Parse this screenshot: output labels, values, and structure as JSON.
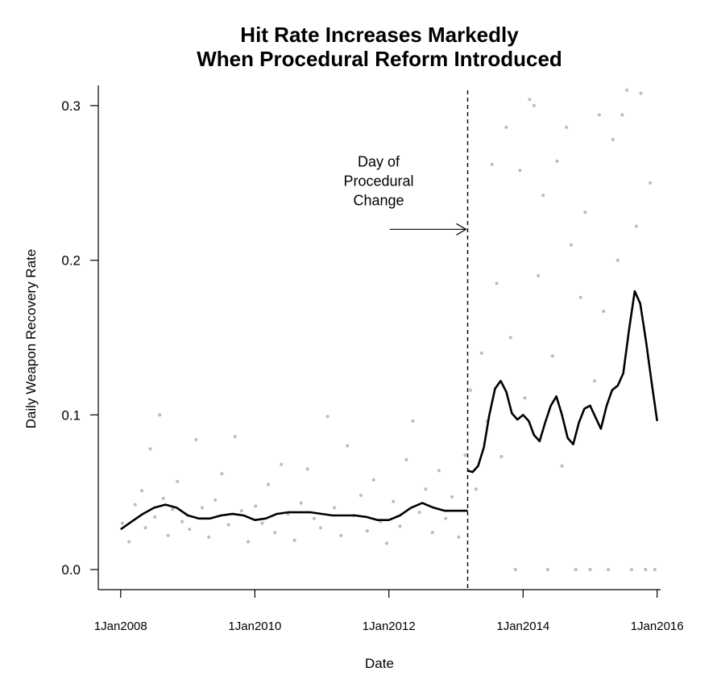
{
  "chart_data": {
    "type": "scatter",
    "title_line1": "Hit Rate Increases Markedly",
    "title_line2": "When Procedural Reform Introduced",
    "xlabel": "Date",
    "ylabel": "Daily Weapon Recovery Rate",
    "xlim": [
      "2007-09-01",
      "2016-01-20"
    ],
    "ylim": [
      -0.013,
      0.313
    ],
    "grid": false,
    "x_ticks": [
      {
        "date": "2008-01-01",
        "label": "1Jan2008"
      },
      {
        "date": "2010-01-01",
        "label": "1Jan2010"
      },
      {
        "date": "2012-01-01",
        "label": "1Jan2012"
      },
      {
        "date": "2014-01-01",
        "label": "1Jan2014"
      },
      {
        "date": "2016-01-01",
        "label": "1Jan2016"
      }
    ],
    "y_ticks": [
      {
        "value": 0.0,
        "label": "0.0"
      },
      {
        "value": 0.1,
        "label": "0.1"
      },
      {
        "value": 0.2,
        "label": "0.2"
      },
      {
        "value": 0.3,
        "label": "0.3"
      }
    ],
    "procedural_change_date": "2013-03-05",
    "annotation": {
      "lines": [
        "Day of",
        "Procedural",
        "Change"
      ],
      "arrow_from_date": "2012-01-05",
      "arrow_y": 0.22
    },
    "smooth_before": [
      [
        "2008-01-01",
        0.026
      ],
      [
        "2008-03-01",
        0.031
      ],
      [
        "2008-05-01",
        0.036
      ],
      [
        "2008-07-01",
        0.04
      ],
      [
        "2008-09-01",
        0.042
      ],
      [
        "2008-11-01",
        0.04
      ],
      [
        "2009-01-01",
        0.035
      ],
      [
        "2009-03-01",
        0.033
      ],
      [
        "2009-05-01",
        0.033
      ],
      [
        "2009-07-01",
        0.035
      ],
      [
        "2009-09-01",
        0.036
      ],
      [
        "2009-11-01",
        0.035
      ],
      [
        "2010-01-01",
        0.032
      ],
      [
        "2010-03-01",
        0.033
      ],
      [
        "2010-05-01",
        0.036
      ],
      [
        "2010-07-01",
        0.037
      ],
      [
        "2010-09-01",
        0.037
      ],
      [
        "2010-11-01",
        0.037
      ],
      [
        "2011-01-01",
        0.036
      ],
      [
        "2011-03-01",
        0.035
      ],
      [
        "2011-05-01",
        0.035
      ],
      [
        "2011-07-01",
        0.035
      ],
      [
        "2011-09-01",
        0.034
      ],
      [
        "2011-11-01",
        0.032
      ],
      [
        "2012-01-01",
        0.032
      ],
      [
        "2012-03-01",
        0.035
      ],
      [
        "2012-05-01",
        0.04
      ],
      [
        "2012-07-01",
        0.043
      ],
      [
        "2012-09-01",
        0.04
      ],
      [
        "2012-11-01",
        0.038
      ],
      [
        "2013-01-01",
        0.038
      ],
      [
        "2013-03-05",
        0.038
      ]
    ],
    "smooth_after": [
      [
        "2013-03-05",
        0.064
      ],
      [
        "2013-04-01",
        0.063
      ],
      [
        "2013-05-01",
        0.067
      ],
      [
        "2013-06-01",
        0.079
      ],
      [
        "2013-07-01",
        0.1
      ],
      [
        "2013-08-01",
        0.117
      ],
      [
        "2013-09-01",
        0.122
      ],
      [
        "2013-10-01",
        0.115
      ],
      [
        "2013-11-01",
        0.101
      ],
      [
        "2013-12-01",
        0.097
      ],
      [
        "2014-01-01",
        0.1
      ],
      [
        "2014-02-01",
        0.096
      ],
      [
        "2014-03-01",
        0.087
      ],
      [
        "2014-04-01",
        0.083
      ],
      [
        "2014-05-01",
        0.095
      ],
      [
        "2014-06-01",
        0.106
      ],
      [
        "2014-07-01",
        0.112
      ],
      [
        "2014-08-01",
        0.1
      ],
      [
        "2014-09-01",
        0.085
      ],
      [
        "2014-10-01",
        0.081
      ],
      [
        "2014-11-01",
        0.095
      ],
      [
        "2014-12-01",
        0.104
      ],
      [
        "2015-01-01",
        0.106
      ],
      [
        "2015-02-01",
        0.098
      ],
      [
        "2015-03-01",
        0.091
      ],
      [
        "2015-04-01",
        0.106
      ],
      [
        "2015-05-01",
        0.116
      ],
      [
        "2015-06-01",
        0.119
      ],
      [
        "2015-07-01",
        0.127
      ],
      [
        "2015-08-01",
        0.155
      ],
      [
        "2015-09-01",
        0.18
      ],
      [
        "2015-10-01",
        0.172
      ],
      [
        "2015-11-01",
        0.148
      ],
      [
        "2015-12-01",
        0.122
      ],
      [
        "2016-01-01",
        0.096
      ]
    ],
    "scatter_before": [
      [
        "2008-01-10",
        0.03
      ],
      [
        "2008-02-15",
        0.018
      ],
      [
        "2008-03-20",
        0.042
      ],
      [
        "2008-04-25",
        0.051
      ],
      [
        "2008-05-15",
        0.027
      ],
      [
        "2008-06-10",
        0.078
      ],
      [
        "2008-07-05",
        0.034
      ],
      [
        "2008-08-01",
        0.1
      ],
      [
        "2008-08-20",
        0.046
      ],
      [
        "2008-09-15",
        0.022
      ],
      [
        "2008-10-10",
        0.039
      ],
      [
        "2008-11-05",
        0.057
      ],
      [
        "2008-12-01",
        0.031
      ],
      [
        "2009-01-10",
        0.026
      ],
      [
        "2009-02-15",
        0.084
      ],
      [
        "2009-03-20",
        0.04
      ],
      [
        "2009-04-25",
        0.021
      ],
      [
        "2009-05-30",
        0.045
      ],
      [
        "2009-07-05",
        0.062
      ],
      [
        "2009-08-10",
        0.029
      ],
      [
        "2009-09-15",
        0.086
      ],
      [
        "2009-10-20",
        0.038
      ],
      [
        "2009-11-25",
        0.018
      ],
      [
        "2010-01-05",
        0.041
      ],
      [
        "2010-02-10",
        0.03
      ],
      [
        "2010-03-15",
        0.055
      ],
      [
        "2010-04-20",
        0.024
      ],
      [
        "2010-05-25",
        0.068
      ],
      [
        "2010-06-30",
        0.036
      ],
      [
        "2010-08-05",
        0.019
      ],
      [
        "2010-09-10",
        0.043
      ],
      [
        "2010-10-15",
        0.065
      ],
      [
        "2010-11-20",
        0.033
      ],
      [
        "2010-12-25",
        0.027
      ],
      [
        "2011-02-01",
        0.099
      ],
      [
        "2011-03-10",
        0.04
      ],
      [
        "2011-04-15",
        0.022
      ],
      [
        "2011-05-20",
        0.08
      ],
      [
        "2011-06-25",
        0.035
      ],
      [
        "2011-08-01",
        0.048
      ],
      [
        "2011-09-05",
        0.025
      ],
      [
        "2011-10-10",
        0.058
      ],
      [
        "2011-11-15",
        0.031
      ],
      [
        "2011-12-20",
        0.017
      ],
      [
        "2012-01-25",
        0.044
      ],
      [
        "2012-03-01",
        0.028
      ],
      [
        "2012-04-05",
        0.071
      ],
      [
        "2012-05-10",
        0.096
      ],
      [
        "2012-06-15",
        0.037
      ],
      [
        "2012-07-20",
        0.052
      ],
      [
        "2012-08-25",
        0.024
      ],
      [
        "2012-09-30",
        0.064
      ],
      [
        "2012-11-05",
        0.033
      ],
      [
        "2012-12-10",
        0.047
      ],
      [
        "2013-01-15",
        0.021
      ],
      [
        "2013-02-20",
        0.074
      ]
    ],
    "scatter_after": [
      [
        "2013-03-20",
        0.116
      ],
      [
        "2013-04-20",
        0.052
      ],
      [
        "2013-05-20",
        0.14
      ],
      [
        "2013-06-20",
        0.096
      ],
      [
        "2013-07-15",
        0.262
      ],
      [
        "2013-08-10",
        0.185
      ],
      [
        "2013-09-05",
        0.073
      ],
      [
        "2013-10-01",
        0.286
      ],
      [
        "2013-10-25",
        0.15
      ],
      [
        "2013-11-20",
        0.0
      ],
      [
        "2013-12-15",
        0.258
      ],
      [
        "2014-01-10",
        0.111
      ],
      [
        "2014-02-05",
        0.304
      ],
      [
        "2014-03-01",
        0.3
      ],
      [
        "2014-03-25",
        0.19
      ],
      [
        "2014-04-20",
        0.242
      ],
      [
        "2014-05-15",
        0.0
      ],
      [
        "2014-06-10",
        0.138
      ],
      [
        "2014-07-05",
        0.264
      ],
      [
        "2014-08-01",
        0.067
      ],
      [
        "2014-08-25",
        0.286
      ],
      [
        "2014-09-20",
        0.21
      ],
      [
        "2014-10-15",
        0.0
      ],
      [
        "2014-11-10",
        0.176
      ],
      [
        "2014-12-05",
        0.231
      ],
      [
        "2015-01-01",
        0.0
      ],
      [
        "2015-01-25",
        0.122
      ],
      [
        "2015-02-20",
        0.294
      ],
      [
        "2015-03-15",
        0.167
      ],
      [
        "2015-04-10",
        0.0
      ],
      [
        "2015-05-05",
        0.278
      ],
      [
        "2015-06-01",
        0.2
      ],
      [
        "2015-06-25",
        0.294
      ],
      [
        "2015-07-20",
        0.31
      ],
      [
        "2015-08-15",
        0.0
      ],
      [
        "2015-09-10",
        0.222
      ],
      [
        "2015-10-05",
        0.308
      ],
      [
        "2015-10-30",
        0.0
      ],
      [
        "2015-11-25",
        0.25
      ],
      [
        "2015-12-20",
        0.0
      ]
    ]
  }
}
